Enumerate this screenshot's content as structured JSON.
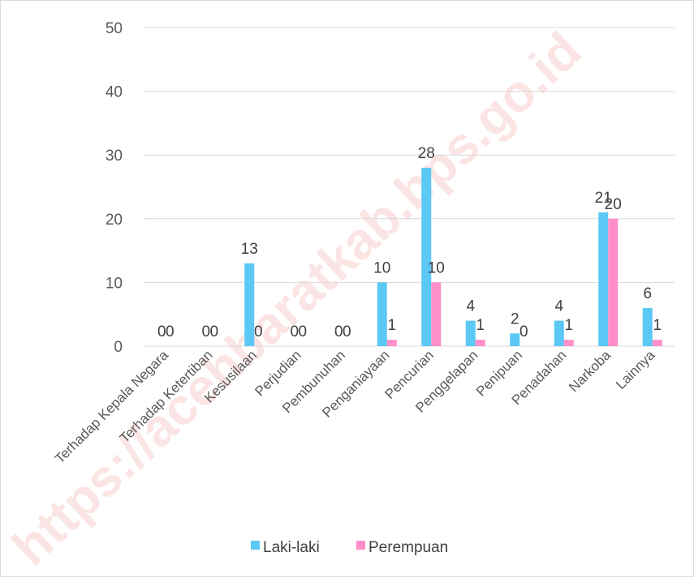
{
  "watermark": "https://acehbaratkab.bps.go.id",
  "chart_data": {
    "type": "bar",
    "categories": [
      "Terhadap Kepala Negara",
      "Terhadap Ketertiban",
      "Kesusilaan",
      "Perjudian",
      "Pembunuhan",
      "Penganiayaan",
      "Pencurian",
      "Penggelapan",
      "Penipuan",
      "Penadahan",
      "Narkoba",
      "Lainnya"
    ],
    "series": [
      {
        "name": "Laki-laki",
        "color": "#5BC8F5",
        "values": [
          0,
          0,
          13,
          0,
          0,
          10,
          28,
          4,
          2,
          4,
          21,
          6
        ]
      },
      {
        "name": "Perempuan",
        "color": "#FF8FC8",
        "values": [
          0,
          0,
          0,
          0,
          0,
          1,
          10,
          1,
          0,
          1,
          20,
          1
        ]
      }
    ],
    "ylim": [
      0,
      50
    ],
    "yticks": [
      0,
      10,
      20,
      30,
      40,
      50
    ],
    "grid": true,
    "legend": "bottom",
    "data_labels": true
  }
}
